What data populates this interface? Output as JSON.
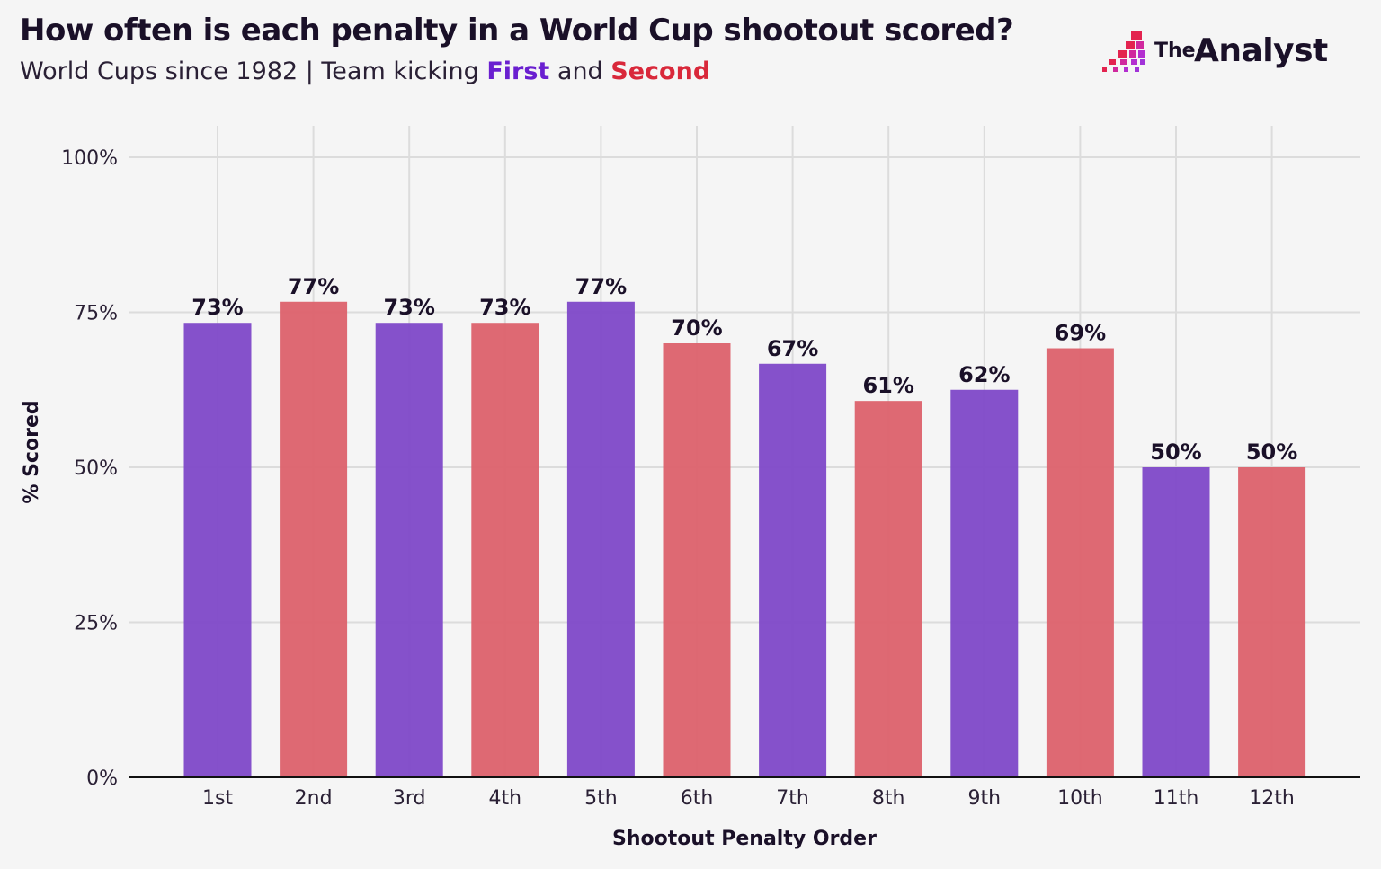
{
  "chart_data": {
    "type": "bar",
    "title": "How often is each penalty in a World Cup shootout scored?",
    "subtitle": {
      "prefix": "World Cups since 1982 | Team kicking ",
      "first": "First",
      "and": " and ",
      "second": "Second"
    },
    "xlabel": "Shootout Penalty Order",
    "ylabel": "% Scored",
    "ylim": [
      0,
      100
    ],
    "yticks": [
      0,
      25,
      50,
      75,
      100
    ],
    "ytick_labels": [
      "0%",
      "25%",
      "50%",
      "75%",
      "100%"
    ],
    "grid": true,
    "categories": [
      "1st",
      "2nd",
      "3rd",
      "4th",
      "5th",
      "6th",
      "7th",
      "8th",
      "9th",
      "10th",
      "11th",
      "12th"
    ],
    "values": [
      73.3,
      76.7,
      73.3,
      73.3,
      76.7,
      70,
      66.7,
      60.7,
      62.5,
      69.2,
      50,
      50
    ],
    "data_labels": [
      "73%",
      "77%",
      "73%",
      "73%",
      "77%",
      "70%",
      "67%",
      "61%",
      "62%",
      "69%",
      "50%",
      "50%"
    ],
    "team": [
      "First",
      "Second",
      "First",
      "Second",
      "First",
      "Second",
      "First",
      "Second",
      "First",
      "Second",
      "First",
      "Second"
    ],
    "colors": {
      "First": "#7e48c8",
      "Second": "#dc616b",
      "first_text": "#6a1fd0",
      "second_text": "#d9283a"
    }
  },
  "logo": {
    "the": "The",
    "analyst": "Analyst"
  }
}
